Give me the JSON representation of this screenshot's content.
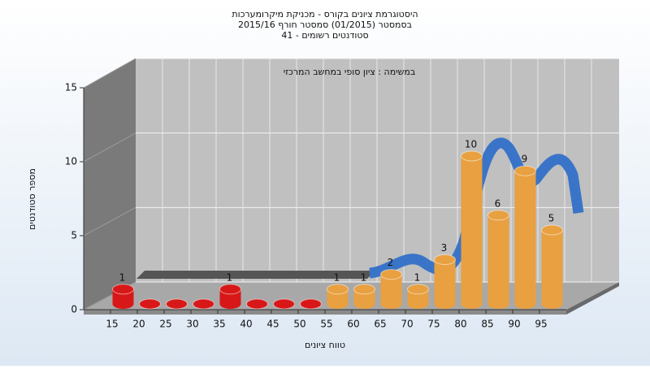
{
  "chart_data": {
    "type": "bar",
    "title": [
      "היסטוגרמת ציונים בקורס - מכניקת מיקרומערכות",
      "בסמסטר (01/2015)  סמסטר חורף 2015/16",
      "סטודנטים רשומים - 41"
    ],
    "subtitle": "במשימה : ציון סופי במחשב המרכזי",
    "x_label": "טווח ציונים",
    "y_label": "מספר סטודנטים",
    "categories": [
      15,
      20,
      25,
      30,
      35,
      40,
      45,
      50,
      55,
      60,
      65,
      70,
      75,
      80,
      85,
      90,
      95
    ],
    "values": [
      1,
      0,
      0,
      0,
      1,
      0,
      0,
      0,
      1,
      1,
      2,
      1,
      3,
      10,
      6,
      9,
      5
    ],
    "colors": [
      "#d81818",
      "#d81818",
      "#d81818",
      "#d81818",
      "#d81818",
      "#d81818",
      "#d81818",
      "#d81818",
      "#e8a040",
      "#e8a040",
      "#e8a040",
      "#e8a040",
      "#e8a040",
      "#e8a040",
      "#e8a040",
      "#e8a040",
      "#e8a040"
    ],
    "ylim": [
      0,
      15
    ],
    "yticks": [
      0,
      5,
      10,
      15
    ],
    "grid": true
  }
}
